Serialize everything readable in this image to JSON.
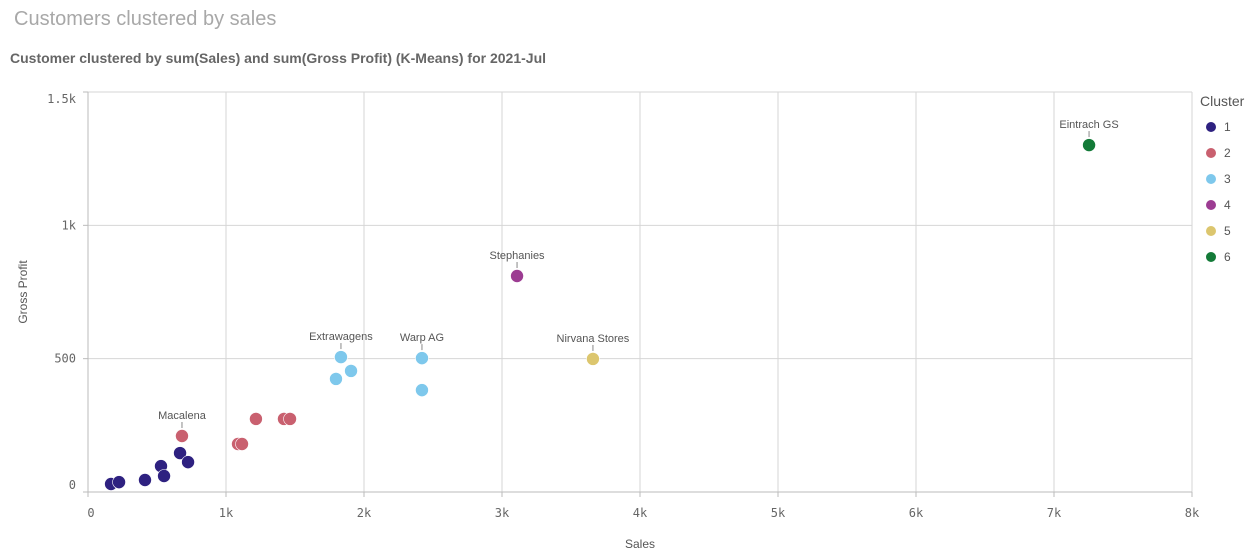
{
  "header": {
    "title": "Customers clustered by sales",
    "subtitle": "Customer clustered by sum(Sales) and sum(Gross Profit) (K-Means) for 2021-Jul"
  },
  "chart_data": {
    "type": "scatter",
    "xlabel": "Sales",
    "ylabel": "Gross Profit",
    "xlim": [
      0,
      8000
    ],
    "ylim": [
      0,
      1500
    ],
    "xticks": [
      {
        "v": 0,
        "t": "0"
      },
      {
        "v": 1000,
        "t": "1k"
      },
      {
        "v": 2000,
        "t": "2k"
      },
      {
        "v": 3000,
        "t": "3k"
      },
      {
        "v": 4000,
        "t": "4k"
      },
      {
        "v": 5000,
        "t": "5k"
      },
      {
        "v": 6000,
        "t": "6k"
      },
      {
        "v": 7000,
        "t": "7k"
      },
      {
        "v": 8000,
        "t": "8k"
      }
    ],
    "yticks": [
      {
        "v": 0,
        "t": "0"
      },
      {
        "v": 500,
        "t": "500"
      },
      {
        "v": 1000,
        "t": "1k"
      },
      {
        "v": 1500,
        "t": "1.5k"
      }
    ],
    "grid": true,
    "legend": {
      "title": "Cluster",
      "placement": "right"
    },
    "series": [
      {
        "name": "1",
        "color": "#2e2180",
        "points": [
          [
            167,
            30
          ],
          [
            225,
            37
          ],
          [
            413,
            45
          ],
          [
            529,
            97
          ],
          [
            551,
            60
          ],
          [
            667,
            146
          ],
          [
            725,
            112
          ]
        ]
      },
      {
        "name": "2",
        "color": "#c9606f",
        "points": [
          [
            681,
            210,
            "Macalena"
          ],
          [
            1087,
            180
          ],
          [
            1116,
            180
          ],
          [
            1217,
            274
          ],
          [
            1420,
            274
          ],
          [
            1464,
            274
          ]
        ]
      },
      {
        "name": "3",
        "color": "#7ec8ec",
        "points": [
          [
            1797,
            424
          ],
          [
            1833,
            506,
            "Extrawagens"
          ],
          [
            1906,
            454
          ],
          [
            2420,
            502,
            "Warp AG"
          ],
          [
            2420,
            382
          ]
        ]
      },
      {
        "name": "4",
        "color": "#9c3c92",
        "points": [
          [
            3109,
            810,
            "Stephanies"
          ]
        ]
      },
      {
        "name": "5",
        "color": "#dcc66e",
        "points": [
          [
            3659,
            499,
            "Nirvana Stores"
          ]
        ]
      },
      {
        "name": "6",
        "color": "#137a38",
        "points": [
          [
            7254,
            1301,
            "Eintrach GS"
          ]
        ]
      }
    ]
  }
}
